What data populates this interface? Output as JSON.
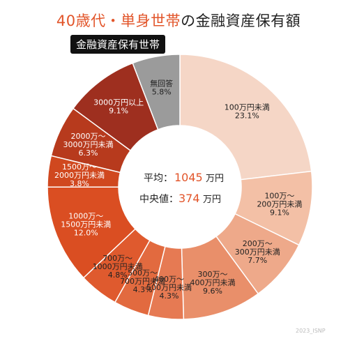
{
  "title": {
    "accent": "40歳代・単身世帯",
    "rest": "の金融資産保有額"
  },
  "tag": "金融資産保有世帯",
  "center": {
    "avg_label": "平均：",
    "avg_value": "1045",
    "avg_unit": "万円",
    "median_label": "中央値：",
    "median_value": "374",
    "median_unit": "万円"
  },
  "watermark": "2023_ISNP",
  "colors": {
    "accent": "#e2552a",
    "no_answer": "#9b9b9b"
  },
  "chart_data": {
    "type": "pie",
    "donut": true,
    "series": [
      {
        "category": [
          "100万円未満"
        ],
        "value": 23.1,
        "color": "#f5d6c6"
      },
      {
        "category": [
          "100万～",
          "200万円未満"
        ],
        "value": 9.1,
        "color": "#f3c0a6"
      },
      {
        "category": [
          "200万～",
          "300万円未満"
        ],
        "value": 7.7,
        "color": "#eea98a"
      },
      {
        "category": [
          "300万～",
          "400万円未満"
        ],
        "value": 9.6,
        "color": "#e98f6a"
      },
      {
        "category": [
          "400万～",
          "500万円未満"
        ],
        "value": 4.3,
        "color": "#e67a53"
      },
      {
        "category": [
          "500万～",
          "700万円未満"
        ],
        "value": 4.3,
        "color": "#e26a3f"
      },
      {
        "category": [
          "700万～",
          "1000万円未満"
        ],
        "value": 4.8,
        "color": "#df5a2e"
      },
      {
        "category": [
          "1000万～",
          "1500万円未満"
        ],
        "value": 12.0,
        "color": "#da4e22"
      },
      {
        "category": [
          "1500万～",
          "2000万円未満"
        ],
        "value": 3.8,
        "color": "#d0481f"
      },
      {
        "category": [
          "2000万～",
          "3000万円未満"
        ],
        "value": 6.3,
        "color": "#b73a1d"
      },
      {
        "category": [
          "3000万円以上"
        ],
        "value": 9.1,
        "color": "#9e2f1f"
      },
      {
        "category": [
          "無回答"
        ],
        "value": 5.8,
        "color": "#9b9b9b"
      }
    ],
    "value_suffix": "%"
  }
}
